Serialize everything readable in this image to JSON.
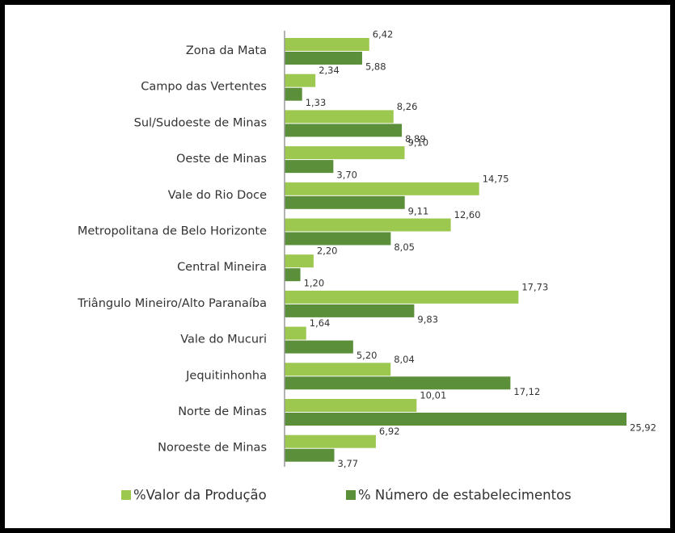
{
  "chart_data": {
    "type": "barh",
    "categories": [
      "Zona da Mata",
      "Campo das Vertentes",
      "Sul/Sudoeste de Minas",
      "Oeste de Minas",
      "Vale do Rio Doce",
      "Metropolitana de Belo Horizonte",
      "Central Mineira",
      "Triângulo Mineiro/Alto Paranaíba",
      "Vale do Mucuri",
      "Jequitinhonha",
      "Norte de Minas",
      "Noroeste de Minas"
    ],
    "series": [
      {
        "name": "%Valor da Produção",
        "color": "#9cc850",
        "values": [
          6.42,
          2.34,
          8.26,
          9.1,
          14.75,
          12.6,
          2.2,
          17.73,
          1.64,
          8.04,
          10.01,
          6.92
        ],
        "value_labels": [
          "6,42",
          "2,34",
          "8,26",
          "9,10",
          "14,75",
          "12,60",
          "2,20",
          "17,73",
          "1,64",
          "8,04",
          "10,01",
          "6,92"
        ]
      },
      {
        "name": "% Número de estabelecimentos",
        "color": "#5b8f3a",
        "values": [
          5.88,
          1.33,
          8.89,
          3.7,
          9.11,
          8.05,
          1.2,
          9.83,
          5.2,
          17.12,
          25.92,
          3.77
        ],
        "value_labels": [
          "5,88",
          "1,33",
          "8,89",
          "3,70",
          "9,11",
          "8,05",
          "1,20",
          "9,83",
          "5,20",
          "17,12",
          "25,92",
          "3,77"
        ]
      }
    ],
    "legend": "bottom"
  }
}
